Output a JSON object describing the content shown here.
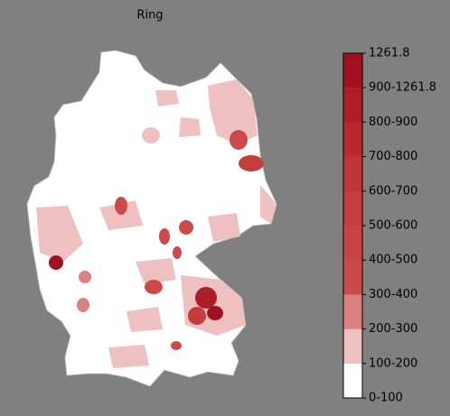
{
  "title": "Ring",
  "colorbar": {
    "labels": [
      "0-100",
      "100-200",
      "200-300",
      "300-400",
      "400-500",
      "500-600",
      "600-700",
      "700-800",
      "800-900",
      "900-1261.8",
      "1261.8"
    ],
    "colors": [
      "#ffffff",
      "#eec0c0",
      "#dc8080",
      "#cc4a4a",
      "#c84444",
      "#c43c3c",
      "#bf3434",
      "#b82a2e",
      "#ad1d26",
      "#a0101e"
    ]
  }
}
